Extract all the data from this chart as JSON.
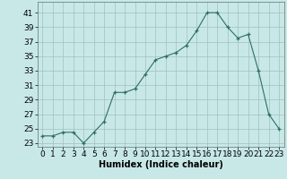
{
  "x": [
    0,
    1,
    2,
    3,
    4,
    5,
    6,
    7,
    8,
    9,
    10,
    11,
    12,
    13,
    14,
    15,
    16,
    17,
    18,
    19,
    20,
    21,
    22,
    23
  ],
  "y": [
    24.0,
    24.0,
    24.5,
    24.5,
    23.0,
    24.5,
    26.0,
    30.0,
    30.0,
    30.5,
    32.5,
    34.5,
    35.0,
    35.5,
    36.5,
    38.5,
    41.0,
    41.0,
    39.0,
    37.5,
    38.0,
    33.0,
    27.0,
    25.0
  ],
  "xlabel": "Humidex (Indice chaleur)",
  "ylabel": "",
  "ylim": [
    22.5,
    42.5
  ],
  "xlim": [
    -0.5,
    23.5
  ],
  "yticks": [
    23,
    25,
    27,
    29,
    31,
    33,
    35,
    37,
    39,
    41
  ],
  "xticks": [
    0,
    1,
    2,
    3,
    4,
    5,
    6,
    7,
    8,
    9,
    10,
    11,
    12,
    13,
    14,
    15,
    16,
    17,
    18,
    19,
    20,
    21,
    22,
    23
  ],
  "line_color": "#2e6e5e",
  "marker_color": "#2e6e5e",
  "bg_color": "#c8e8e8",
  "grid_color": "#a0c0c0",
  "xlabel_fontsize": 7,
  "tick_fontsize": 6.5
}
